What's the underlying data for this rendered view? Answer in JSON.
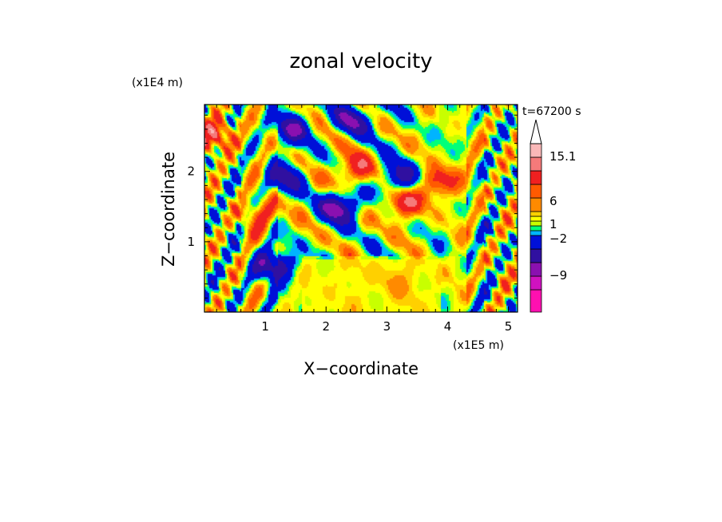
{
  "chart_data": {
    "type": "heatmap",
    "title": "zonal velocity",
    "time_label": "t=67200 s",
    "xlabel": "X−coordinate",
    "ylabel": "Z−coordinate",
    "x_scale_label": "(x1E5 m)",
    "y_scale_label": "(x1E4 m)",
    "xlim": [
      0,
      5.15
    ],
    "ylim": [
      0,
      2.95
    ],
    "x_ticks": [
      1,
      2,
      3,
      4,
      5
    ],
    "y_ticks": [
      1,
      2
    ],
    "x_tick_labels": [
      "1",
      "2",
      "3",
      "4",
      "5"
    ],
    "y_tick_labels": [
      "1",
      "2"
    ],
    "colorbar": {
      "colors": [
        "#ff10b0",
        "#d012c0",
        "#8a10b0",
        "#3010a0",
        "#0010d8",
        "#00b4ff",
        "#00ff7a",
        "#c8ff00",
        "#ffff00",
        "#ffd000",
        "#ff8a00",
        "#ff5a00",
        "#f02020",
        "#f57a7a",
        "#fab8b8",
        "#ffffff"
      ],
      "labels": [
        "15.1",
        "6",
        "1",
        "−2",
        "−9"
      ],
      "label_positions": [
        15.1,
        6,
        1,
        -2,
        -9
      ],
      "extend": "max"
    },
    "field_features": [
      {
        "x": 2.25,
        "z": 1.5,
        "value": -11
      },
      {
        "x": 1.15,
        "z": 0.65,
        "value": -10
      },
      {
        "x": 3.25,
        "z": 1.9,
        "value": -9
      },
      {
        "x": 2.5,
        "z": 2.75,
        "value": -8
      },
      {
        "x": 1.45,
        "z": 2.6,
        "value": -8
      },
      {
        "x": 1.35,
        "z": 1.9,
        "value": -7
      },
      {
        "x": 3.25,
        "z": 1.55,
        "value": 8
      },
      {
        "x": 2.4,
        "z": 2.0,
        "value": 7
      },
      {
        "x": 3.85,
        "z": 1.85,
        "value": 8
      },
      {
        "x": 0.2,
        "z": 2.5,
        "value": 7
      },
      {
        "x": 0.95,
        "z": 1.4,
        "value": 5
      },
      {
        "x": 3.15,
        "z": 0.45,
        "value": 3
      }
    ]
  }
}
